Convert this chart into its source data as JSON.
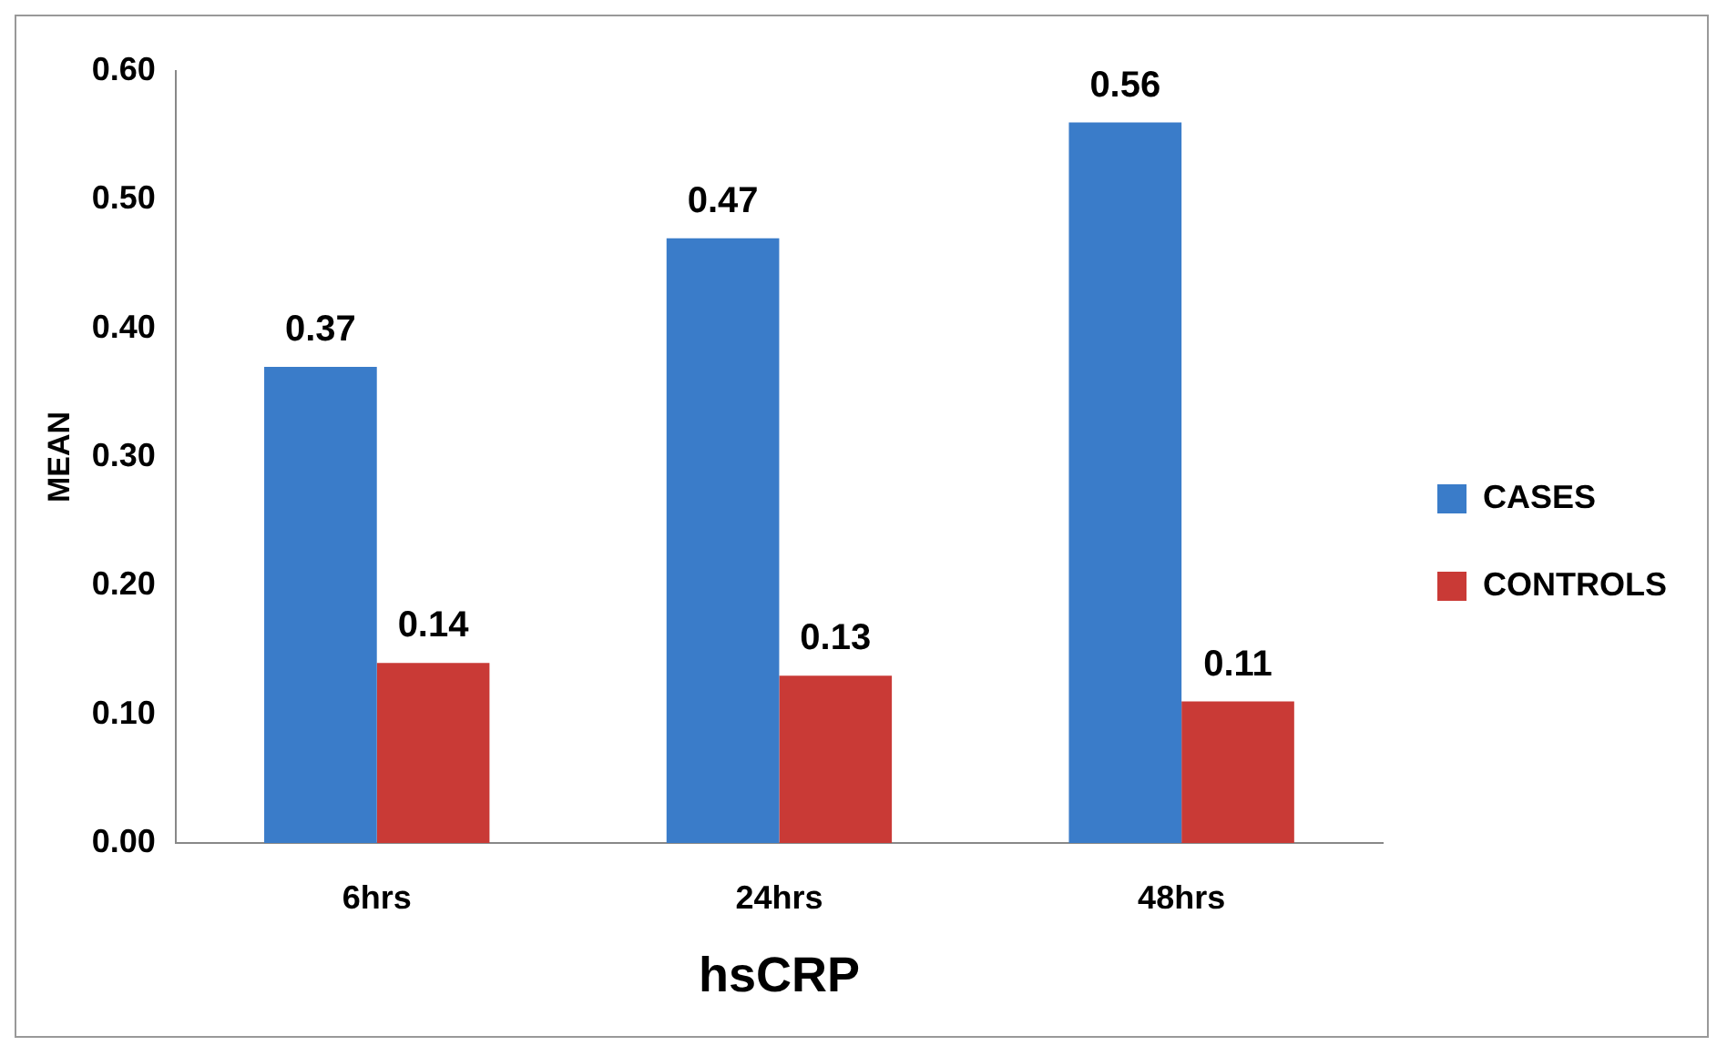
{
  "chart_data": {
    "type": "bar",
    "xlabel": "hsCRP",
    "ylabel": "MEAN",
    "categories": [
      "6hrs",
      "24hrs",
      "48hrs"
    ],
    "series": [
      {
        "name": "CASES",
        "color": "#3a7cc9",
        "values": [
          0.37,
          0.47,
          0.56
        ]
      },
      {
        "name": "CONTROLS",
        "color": "#c93a36",
        "values": [
          0.14,
          0.13,
          0.11
        ]
      }
    ],
    "ylim": [
      0,
      0.6
    ],
    "yticks": [
      {
        "value": 0,
        "label": "0.00"
      },
      {
        "value": 0.1,
        "label": "0.10"
      },
      {
        "value": 0.2,
        "label": "0.20"
      },
      {
        "value": 0.3,
        "label": "0.30"
      },
      {
        "value": 0.4,
        "label": "0.40"
      },
      {
        "value": 0.5,
        "label": "0.50"
      },
      {
        "value": 0.6,
        "label": "0.60"
      }
    ],
    "grid": false,
    "legend": "right",
    "data_labels": true
  }
}
